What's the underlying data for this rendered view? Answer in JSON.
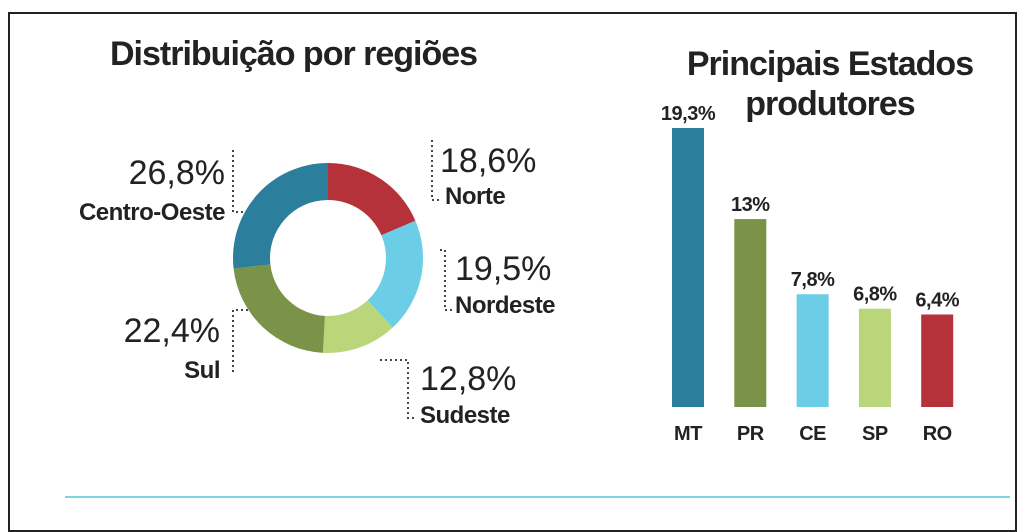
{
  "chart_data": [
    {
      "type": "donut",
      "title": "Distribuição por regiões",
      "categories": [
        "Norte",
        "Nordeste",
        "Sudeste",
        "Sul",
        "Centro-Oeste"
      ],
      "values": [
        18.6,
        19.5,
        12.8,
        22.4,
        26.8
      ],
      "value_labels": [
        "18,6%",
        "19,5%",
        "12,8%",
        "22,4%",
        "26,8%"
      ],
      "colors": [
        "#b5323a",
        "#6ccde6",
        "#b9d77a",
        "#7a9348",
        "#2b7f9c"
      ]
    },
    {
      "type": "bar",
      "title": "Principais Estados produtores",
      "categories": [
        "MT",
        "PR",
        "CE",
        "SP",
        "RO"
      ],
      "values": [
        19.3,
        13,
        7.8,
        6.8,
        6.4
      ],
      "value_labels": [
        "19,3%",
        "13%",
        "7,8%",
        "6,8%",
        "6,4%"
      ],
      "colors": [
        "#2b7f9c",
        "#7a9348",
        "#6ccde6",
        "#b9d77a",
        "#b5323a"
      ]
    }
  ]
}
